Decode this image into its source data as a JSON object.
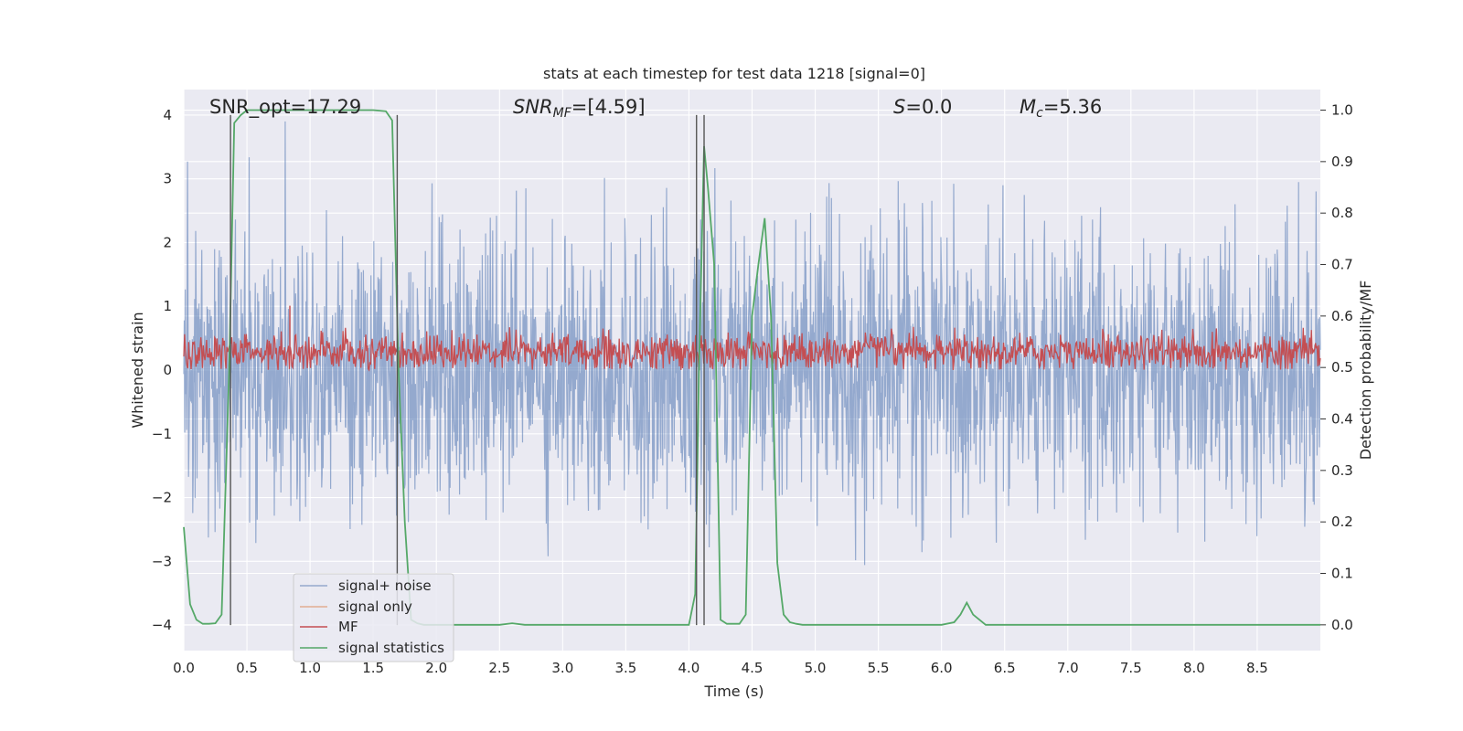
{
  "chart_data": {
    "type": "line",
    "title": "stats at each timestep for test data 1218 [signal=0]",
    "xlabel": "Time (s)",
    "ylabel_left": "Whitened strain",
    "ylabel_right": "Detection probability/MF",
    "xlim": [
      0,
      9
    ],
    "ylim_left": [
      -4.4,
      4.4
    ],
    "ylim_right": [
      -0.05,
      1.04
    ],
    "grid": true,
    "legend_position": "lower-left",
    "x_tick_labels": [
      "0.0",
      "0.5",
      "1.0",
      "1.5",
      "2.0",
      "2.5",
      "3.0",
      "3.5",
      "4.0",
      "4.5",
      "5.0",
      "5.5",
      "6.0",
      "6.5",
      "7.0",
      "7.5",
      "8.0",
      "8.5"
    ],
    "y_left_tick_labels": [
      "−4",
      "−3",
      "−2",
      "−1",
      "0",
      "1",
      "2",
      "3",
      "4"
    ],
    "y_right_tick_labels": [
      "0.0",
      "0.1",
      "0.2",
      "0.3",
      "0.4",
      "0.5",
      "0.6",
      "0.7",
      "0.8",
      "0.9",
      "1.0"
    ],
    "annotations": {
      "snr_opt": "SNR_opt=17.29",
      "snr_mf_main": "SNR",
      "snr_mf_sub": "MF",
      "snr_mf_value": "=[4.59]",
      "s_main": "S",
      "s_value": "=0.0",
      "mc_main": "M",
      "mc_sub": "c",
      "mc_value": "=5.36"
    },
    "vertical_markers_x": [
      0.37,
      1.69,
      4.06,
      4.12
    ],
    "series": [
      {
        "name": "signal+ noise",
        "color": "#4c72b0",
        "axis": "left",
        "noise_model": {
          "typical_amplitude_range": [
            -1.6,
            1.6
          ],
          "max_abs": 3.9
        }
      },
      {
        "name": "signal only",
        "color": "#dd8452",
        "axis": "left",
        "x": [],
        "y": []
      },
      {
        "name": "MF",
        "color": "#c44e52",
        "axis": "right",
        "noise_model": {
          "center": 0.53,
          "range": [
            0.495,
            0.58
          ],
          "peak": 0.62
        }
      },
      {
        "name": "signal statistics",
        "color": "#55a868",
        "axis": "right",
        "x": [
          0.0,
          0.05,
          0.1,
          0.15,
          0.2,
          0.25,
          0.3,
          0.36,
          0.4,
          0.45,
          0.5,
          0.6,
          0.8,
          1.0,
          1.2,
          1.4,
          1.5,
          1.6,
          1.65,
          1.7,
          1.75,
          1.8,
          1.85,
          1.9,
          2.0,
          2.2,
          2.5,
          2.6,
          2.7,
          2.8,
          3.0,
          3.5,
          4.0,
          4.05,
          4.08,
          4.12,
          4.15,
          4.2,
          4.25,
          4.3,
          4.4,
          4.45,
          4.5,
          4.55,
          4.6,
          4.65,
          4.7,
          4.75,
          4.8,
          4.85,
          4.9,
          5.0,
          5.5,
          6.0,
          6.1,
          6.15,
          6.2,
          6.25,
          6.35,
          6.5,
          7.0,
          8.0,
          9.0
        ],
        "y": [
          0.19,
          0.04,
          0.01,
          0.002,
          0.002,
          0.003,
          0.02,
          0.5,
          0.975,
          0.99,
          1.0,
          1.0,
          1.0,
          1.0,
          1.0,
          1.0,
          1.0,
          0.998,
          0.98,
          0.5,
          0.2,
          0.01,
          0.003,
          0.0,
          0.0,
          0.0,
          0.0,
          0.003,
          0.0,
          0.0,
          0.0,
          0.0,
          0.0,
          0.06,
          0.5,
          0.93,
          0.85,
          0.7,
          0.01,
          0.002,
          0.002,
          0.02,
          0.6,
          0.7,
          0.79,
          0.6,
          0.12,
          0.02,
          0.005,
          0.002,
          0.0,
          0.0,
          0.0,
          0.0,
          0.005,
          0.02,
          0.043,
          0.02,
          0.0,
          0.0,
          0.0,
          0.0,
          0.0
        ]
      }
    ]
  }
}
